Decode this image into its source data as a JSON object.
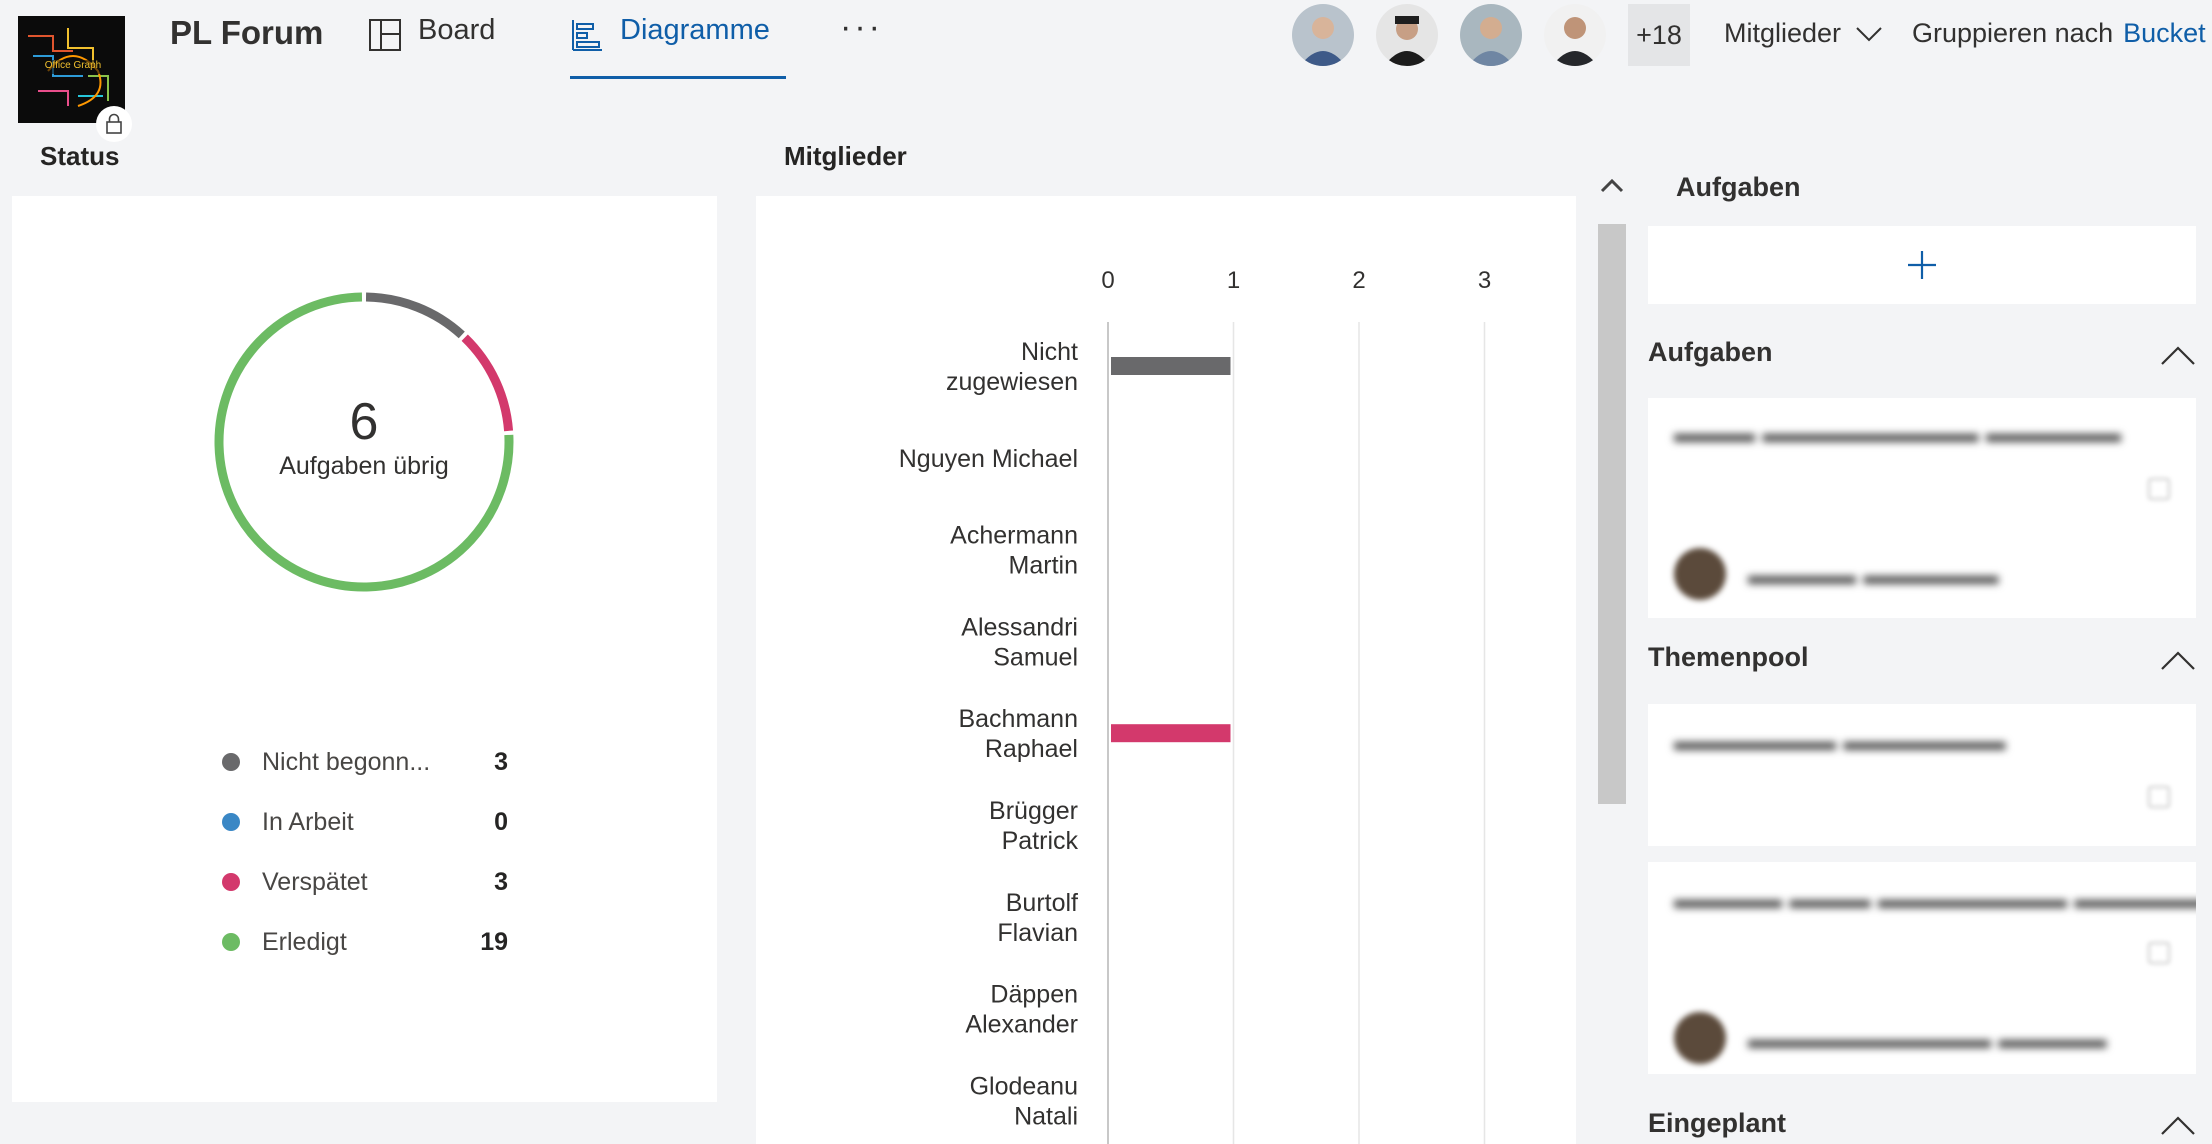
{
  "header": {
    "plan_title": "PL Forum",
    "logo_text": "Office Graph",
    "tabs": [
      {
        "label": "Board",
        "icon": "board-icon",
        "active": false
      },
      {
        "label": "Diagramme",
        "icon": "charts-icon",
        "active": true
      }
    ],
    "more_label": "···",
    "extra_members": "+18",
    "members_filter_label": "Mitglieder",
    "group_by_label": "Gruppieren nach",
    "group_by_value": "Bucket"
  },
  "status": {
    "title": "Status",
    "remaining_count": "6",
    "remaining_label": "Aufgaben übrig",
    "legend": [
      {
        "label": "Nicht begonn...",
        "count": "3",
        "color": "#69696b"
      },
      {
        "label": "In Arbeit",
        "count": "0",
        "color": "#3a87c5"
      },
      {
        "label": "Verspätet",
        "count": "3",
        "color": "#d3396c"
      },
      {
        "label": "Erledigt",
        "count": "19",
        "color": "#6cbb63"
      }
    ]
  },
  "members_chart": {
    "title": "Mitglieder"
  },
  "chart_data": {
    "type": "bar",
    "orientation": "horizontal",
    "title": "Mitglieder",
    "xlim": [
      0,
      3
    ],
    "x_ticks": [
      "0",
      "1",
      "2",
      "3"
    ],
    "categories": [
      "Nicht zugewiesen",
      "Nguyen Michael",
      "Achermann Martin",
      "Alessandri Samuel",
      "Bachmann Raphael",
      "Brügger Patrick",
      "Burtolf Flavian",
      "Däppen Alexander",
      "Glodeanu Natali"
    ],
    "series": [
      {
        "color": "#69696b",
        "values": [
          1,
          0,
          0,
          0,
          0,
          0,
          0,
          0,
          0
        ]
      },
      {
        "color": "#d3396c",
        "values": [
          0,
          0,
          0,
          0,
          1,
          0,
          0,
          0,
          0
        ]
      }
    ],
    "grid": true
  },
  "tasks_panel": {
    "title": "Aufgaben",
    "add_label": "+",
    "groups": [
      {
        "title": "Aufgaben"
      },
      {
        "title": "Themenpool"
      },
      {
        "title": "Eingeplant"
      }
    ]
  },
  "colors": {
    "accent": "#0f5ea8",
    "not_started": "#69696b",
    "in_progress": "#3a87c5",
    "late": "#d3396c",
    "done": "#6cbb63"
  }
}
